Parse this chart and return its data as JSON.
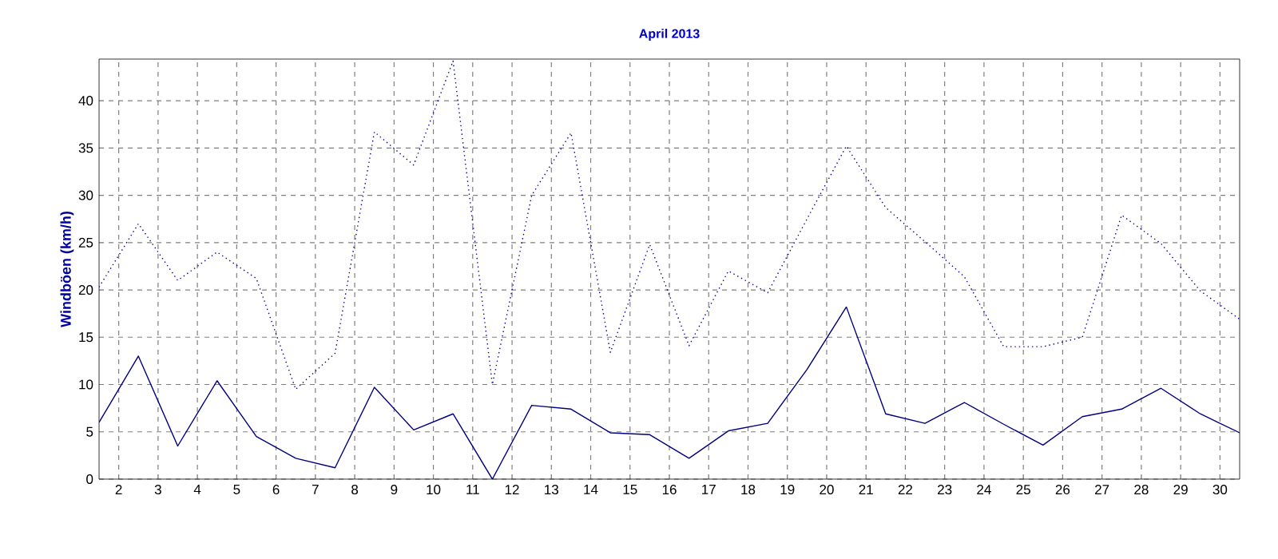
{
  "chart_data": {
    "type": "line",
    "title": "April 2013",
    "ylabel": "Windböen  (km/h)",
    "x": [
      1.5,
      2.5,
      3.5,
      4.5,
      5.5,
      6.5,
      7.5,
      8.5,
      9.5,
      10.5,
      11.5,
      12.5,
      13.5,
      14.5,
      15.5,
      16.5,
      17.5,
      18.5,
      19.5,
      20.5,
      21.5,
      22.5,
      23.5,
      24.5,
      25.5,
      26.5,
      27.5,
      28.5,
      29.5,
      30.5
    ],
    "series": [
      {
        "color": "#000080",
        "line_style": "solid",
        "values": [
          6,
          13,
          3.5,
          10.4,
          4.5,
          2.2,
          1.2,
          9.7,
          5.2,
          6.9,
          0,
          7.8,
          7.4,
          4.9,
          4.7,
          2.2,
          5.1,
          5.9,
          11.6,
          18.2,
          6.9,
          5.9,
          8.1,
          5.8,
          3.6,
          6.6,
          7.4,
          9.6,
          6.9,
          4.9
        ]
      },
      {
        "color": "#0000a0",
        "line_style": "dotted",
        "values": [
          20.3,
          27,
          21,
          24,
          21.2,
          9.5,
          13.3,
          36.7,
          33.2,
          44.2,
          10,
          30,
          36.6,
          13.4,
          24.8,
          14.1,
          22,
          19.7,
          27.5,
          35.2,
          28.7,
          25.1,
          21.4,
          14,
          14,
          15,
          27.9,
          24.9,
          19.9,
          16.9
        ]
      }
    ],
    "xlim": [
      1.5,
      30.5
    ],
    "ylim": [
      0,
      44.4
    ],
    "xticks": [
      2,
      3,
      4,
      5,
      6,
      7,
      8,
      9,
      10,
      11,
      12,
      13,
      14,
      15,
      16,
      17,
      18,
      19,
      20,
      21,
      22,
      23,
      24,
      25,
      26,
      27,
      28,
      29,
      30
    ],
    "yticks": [
      0,
      5,
      10,
      15,
      20,
      25,
      30,
      35,
      40
    ],
    "grid": true,
    "marker": "none"
  }
}
